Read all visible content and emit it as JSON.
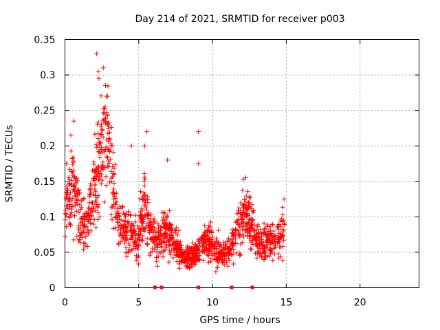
{
  "chart_data": {
    "type": "scatter",
    "title": "Day 214 of 2021, SRMTID for receiver p003",
    "xlabel": "GPS time / hours",
    "ylabel": "SRMTID / TECUs",
    "xlim": [
      0,
      24
    ],
    "ylim": [
      0,
      0.35
    ],
    "x_ticks": [
      0,
      5,
      10,
      15,
      20
    ],
    "y_ticks": [
      0,
      0.05,
      0.1,
      0.15,
      0.2,
      0.25,
      0.3,
      0.35
    ],
    "x_tick_labels": [
      "0",
      "5",
      "10",
      "15",
      "20"
    ],
    "y_tick_labels": [
      "0",
      "0.05",
      "0.1",
      "0.15",
      "0.2",
      "0.25",
      "0.3",
      "0.35"
    ],
    "grid": true,
    "marker": "+",
    "color": "#ff0000",
    "gap_markers_x": [
      6.1,
      6.55,
      9.05,
      11.3,
      12.7
    ],
    "trend": [
      [
        0.0,
        0.1
      ],
      [
        0.3,
        0.13
      ],
      [
        0.6,
        0.15
      ],
      [
        1.0,
        0.1
      ],
      [
        1.5,
        0.09
      ],
      [
        1.8,
        0.13
      ],
      [
        2.2,
        0.16
      ],
      [
        2.6,
        0.22
      ],
      [
        3.0,
        0.2
      ],
      [
        3.3,
        0.13
      ],
      [
        3.6,
        0.09
      ],
      [
        4.0,
        0.085
      ],
      [
        4.5,
        0.08
      ],
      [
        5.0,
        0.07
      ],
      [
        5.4,
        0.12
      ],
      [
        5.8,
        0.08
      ],
      [
        6.2,
        0.065
      ],
      [
        6.6,
        0.08
      ],
      [
        7.0,
        0.075
      ],
      [
        7.5,
        0.06
      ],
      [
        8.0,
        0.045
      ],
      [
        8.5,
        0.045
      ],
      [
        9.0,
        0.05
      ],
      [
        9.5,
        0.065
      ],
      [
        9.9,
        0.065
      ],
      [
        10.3,
        0.05
      ],
      [
        10.8,
        0.045
      ],
      [
        11.2,
        0.055
      ],
      [
        11.7,
        0.08
      ],
      [
        12.2,
        0.1
      ],
      [
        12.5,
        0.095
      ],
      [
        12.9,
        0.07
      ],
      [
        13.3,
        0.06
      ],
      [
        13.8,
        0.065
      ],
      [
        14.3,
        0.07
      ],
      [
        14.8,
        0.08
      ]
    ],
    "highlights": [
      [
        2.15,
        0.33
      ],
      [
        2.25,
        0.305
      ],
      [
        2.3,
        0.295
      ],
      [
        2.6,
        0.31
      ],
      [
        2.75,
        0.285
      ],
      [
        2.8,
        0.27
      ],
      [
        9.05,
        0.22
      ],
      [
        9.05,
        0.175
      ],
      [
        0.6,
        0.235
      ],
      [
        0.4,
        0.215
      ],
      [
        5.55,
        0.22
      ],
      [
        5.4,
        0.2
      ],
      [
        6.95,
        0.18
      ],
      [
        12.25,
        0.155
      ],
      [
        14.85,
        0.125
      ],
      [
        4.5,
        0.2
      ],
      [
        2.2,
        0.23
      ],
      [
        2.9,
        0.23
      ],
      [
        3.3,
        0.125
      ],
      [
        0.1,
        0.175
      ]
    ],
    "point_count": 1500,
    "x_range_of_points": [
      0,
      14.9
    ]
  }
}
